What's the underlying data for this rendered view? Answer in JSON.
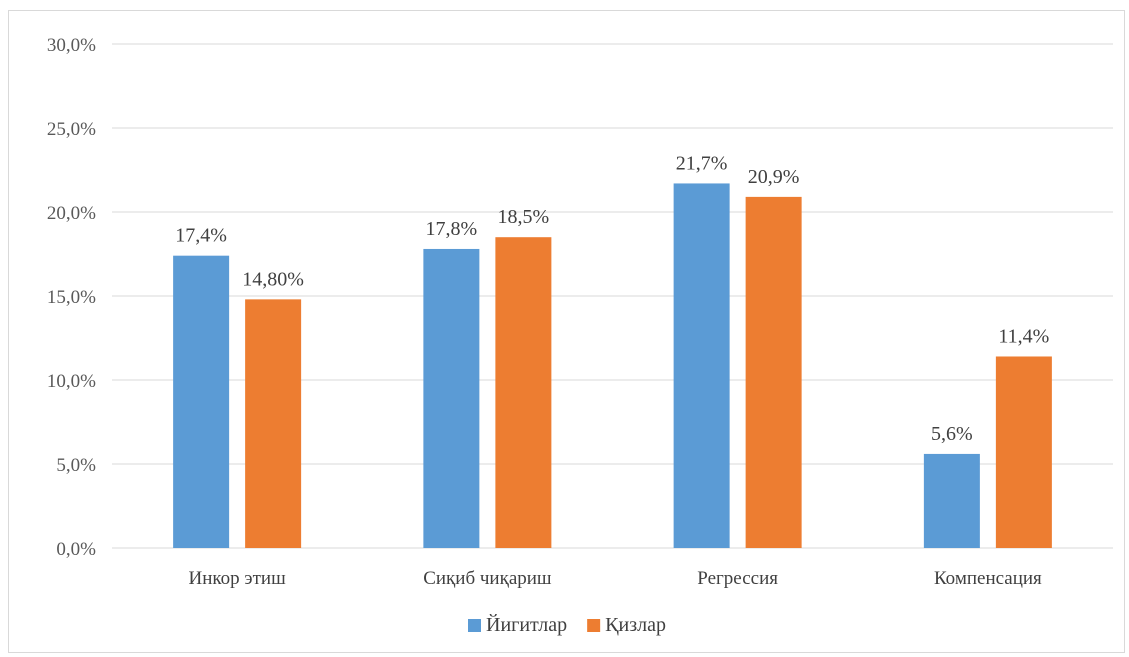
{
  "chart_data": {
    "type": "bar",
    "categories": [
      "Инкор этиш",
      "Сиқиб чиқариш",
      "Регрессия",
      "Компенсация"
    ],
    "series": [
      {
        "name": "Йигитлар",
        "values": [
          17.4,
          17.8,
          21.7,
          5.6
        ],
        "labels": [
          "17,4%",
          "17,8%",
          "21,7%",
          "5,6%"
        ],
        "color": "#5b9bd5"
      },
      {
        "name": "Қизлар",
        "values": [
          14.8,
          18.5,
          20.9,
          11.4
        ],
        "labels": [
          "14,80%",
          "18,5%",
          "20,9%",
          "11,4%"
        ],
        "color": "#ed7d31"
      }
    ],
    "ylim": [
      0,
      30
    ],
    "yticks": [
      0,
      5,
      10,
      15,
      20,
      25,
      30
    ],
    "ytick_labels": [
      "0,0%",
      "5,0%",
      "10,0%",
      "15,0%",
      "20,0%",
      "25,0%",
      "30,0%"
    ],
    "grid": true,
    "legend_position": "bottom",
    "title": "",
    "xlabel": "",
    "ylabel": ""
  }
}
